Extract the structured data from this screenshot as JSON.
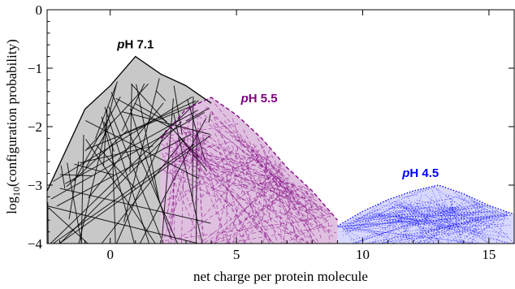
{
  "chart_data": {
    "type": "area",
    "xlabel": "net charge per protein molecule",
    "ylabel": "log10(configuration probability)",
    "xlim": [
      -2.5,
      16
    ],
    "ylim": [
      -4,
      0
    ],
    "xticks": [
      0,
      5,
      10,
      15
    ],
    "yticks": [
      0,
      -1,
      -2,
      -3,
      -4
    ],
    "ytick_labels": [
      "0",
      "−1",
      "−2",
      "−3",
      "−4"
    ],
    "grid": false,
    "series": [
      {
        "name": "pH 7.1",
        "color": "#000000",
        "fill": "#c8c8c8",
        "style": "solid",
        "x_range": [
          -2.5,
          4
        ],
        "envelope": {
          "x": [
            -2.5,
            -1,
            0,
            1,
            2,
            3,
            4
          ],
          "y": [
            -3.1,
            -1.7,
            -1.3,
            -0.8,
            -1.1,
            -1.3,
            -1.6
          ]
        },
        "peak": {
          "x": 1,
          "y": -0.8
        }
      },
      {
        "name": "pH 5.5",
        "color": "#800080",
        "fill": "#e0c0e0",
        "style": "dashed",
        "x_range": [
          2,
          9
        ],
        "envelope": {
          "x": [
            2,
            3,
            4,
            5,
            6,
            7,
            8,
            9
          ],
          "y": [
            -2.2,
            -1.7,
            -1.5,
            -1.8,
            -2.2,
            -2.7,
            -3.1,
            -3.6
          ]
        },
        "peak": {
          "x": 4,
          "y": -1.5
        }
      },
      {
        "name": "pH 4.5",
        "color": "#0000ff",
        "fill": "#d8d8ff",
        "style": "dotted",
        "x_range": [
          9,
          16
        ],
        "envelope": {
          "x": [
            9,
            10,
            11,
            12,
            13,
            14,
            15,
            16
          ],
          "y": [
            -3.7,
            -3.45,
            -3.25,
            -3.1,
            -3.0,
            -3.15,
            -3.35,
            -3.5
          ]
        },
        "peak": {
          "x": 13,
          "y": -3.0
        }
      }
    ]
  }
}
